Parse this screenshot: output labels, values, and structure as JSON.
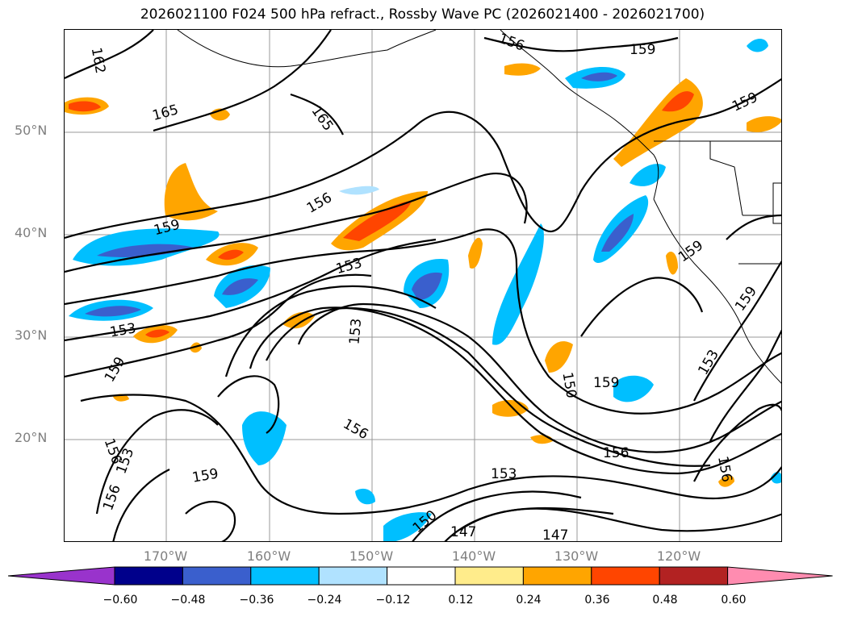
{
  "title": "2026021100 F024 500 hPa refract., Rossby Wave PC (2026021400 - 2026021700)",
  "latitude_labels": [
    "50°N",
    "40°N",
    "30°N",
    "20°N"
  ],
  "longitude_labels": [
    "170°W",
    "160°W",
    "150°W",
    "140°W",
    "130°W",
    "120°W"
  ],
  "colorbar": {
    "ticks": [
      "−0.60",
      "−0.48",
      "−0.36",
      "−0.24",
      "−0.12",
      "0.12",
      "0.24",
      "0.36",
      "0.48",
      "0.60"
    ],
    "colors": [
      "#9933cc",
      "#00008b",
      "#3a5fcd",
      "#00bfff",
      "#b0e2ff",
      "#ffffff",
      "#ffec8b",
      "#ffa500",
      "#ff4500",
      "#b22222",
      "#ff8cb0"
    ]
  },
  "contour_labels": [
    "162",
    "165",
    "165",
    "156",
    "159",
    "153",
    "153",
    "153",
    "159",
    "156",
    "159",
    "159",
    "159",
    "150",
    "159",
    "156",
    "153",
    "156",
    "156",
    "153",
    "159",
    "153",
    "156",
    "150",
    "147",
    "147",
    "156",
    "159"
  ]
}
